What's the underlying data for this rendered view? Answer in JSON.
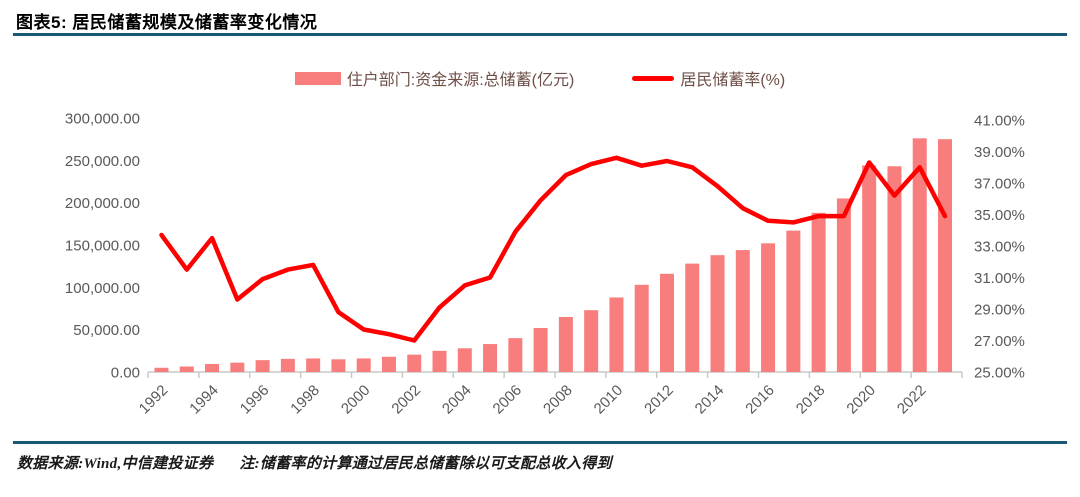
{
  "header": {
    "title": "图表5:  居民储蓄规模及储蓄率变化情况"
  },
  "legend": {
    "items": [
      {
        "label": "住户部门:资金来源:总储蓄(亿元)",
        "swatch": "bar-swatch"
      },
      {
        "label": "居民储蓄率(%)",
        "swatch": "line-swatch"
      }
    ]
  },
  "chart_data": {
    "type": "bar+line",
    "categories": [
      1992,
      1993,
      1994,
      1995,
      1996,
      1997,
      1998,
      1999,
      2000,
      2001,
      2002,
      2003,
      2004,
      2005,
      2006,
      2007,
      2008,
      2009,
      2010,
      2011,
      2012,
      2013,
      2014,
      2015,
      2016,
      2017,
      2018,
      2019,
      2020,
      2021,
      2022,
      2023
    ],
    "series": [
      {
        "name": "住户部门:资金来源:总储蓄(亿元)",
        "type": "bar",
        "axis": "left",
        "values": [
          5000,
          6500,
          9500,
          11000,
          14000,
          15500,
          16000,
          15000,
          16000,
          18000,
          20500,
          25000,
          28000,
          33000,
          40000,
          52000,
          65000,
          73000,
          88000,
          103000,
          116000,
          128000,
          138000,
          144000,
          152000,
          167000,
          188000,
          205000,
          244000,
          243000,
          276000,
          275000
        ]
      },
      {
        "name": "居民储蓄率(%)",
        "type": "line",
        "axis": "right",
        "values": [
          33.7,
          31.5,
          33.5,
          29.6,
          30.9,
          31.5,
          31.8,
          28.8,
          27.7,
          27.4,
          27.0,
          29.1,
          30.5,
          31.0,
          33.9,
          35.9,
          37.5,
          38.2,
          38.6,
          38.1,
          38.4,
          38.0,
          36.8,
          35.4,
          34.6,
          34.5,
          34.9,
          34.9,
          38.3,
          36.2,
          38.0,
          34.9
        ]
      }
    ],
    "left_axis": {
      "min": 0,
      "max": 300000,
      "step": 50000,
      "tick_labels": [
        "0.00",
        "50,000.00",
        "100,000.00",
        "150,000.00",
        "200,000.00",
        "250,000.00",
        "300,000.00"
      ]
    },
    "right_axis": {
      "min": 25,
      "max": 41,
      "step": 2,
      "tick_labels": [
        "25.00%",
        "27.00%",
        "29.00%",
        "31.00%",
        "33.00%",
        "35.00%",
        "37.00%",
        "39.00%",
        "41.00%"
      ]
    },
    "x_axis": {
      "tick_labels": [
        "1992",
        "1994",
        "1996",
        "1998",
        "2000",
        "2002",
        "2004",
        "2006",
        "2008",
        "2010",
        "2012",
        "2014",
        "2016",
        "2018",
        "2020",
        "2022"
      ],
      "label_interval": 2,
      "label_rotation": -45
    },
    "grid": false,
    "legend_position": "top",
    "title": "居民储蓄规模及储蓄率变化情况"
  },
  "footer": {
    "source": "数据来源:Wind,中信建投证券",
    "note": "注:储蓄率的计算通过居民总储蓄除以可支配总收入得到"
  },
  "colors": {
    "bar": "#f87d7d",
    "line": "#fe0000",
    "rule": "#1c5777",
    "axis_text": "#595959",
    "axis_line": "#c9c9c9",
    "legend_text": "#6e4f48"
  }
}
